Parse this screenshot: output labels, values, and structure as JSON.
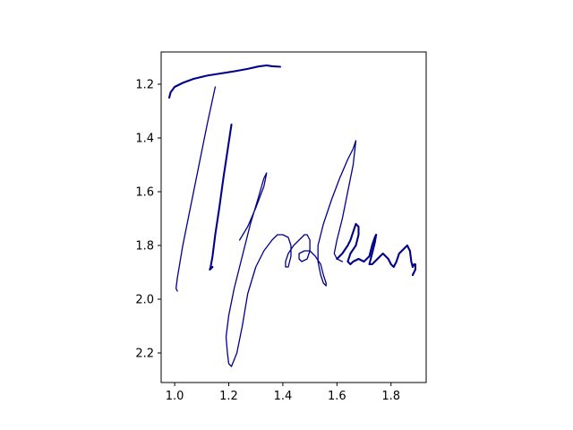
{
  "chart_data": {
    "type": "line",
    "title": "",
    "xlabel": "",
    "ylabel": "",
    "xlim": [
      0.95,
      1.93
    ],
    "ylim": [
      2.31,
      1.08
    ],
    "y_inverted": true,
    "grid": false,
    "x_ticks": [
      1.0,
      1.2,
      1.4,
      1.6,
      1.8
    ],
    "x_tick_labels": [
      "1.0",
      "1.2",
      "1.4",
      "1.6",
      "1.8"
    ],
    "y_ticks": [
      1.2,
      1.4,
      1.6,
      1.8,
      2.0,
      2.2
    ],
    "y_tick_labels": [
      "1.2",
      "1.4",
      "1.6",
      "1.8",
      "2.0",
      "2.2"
    ],
    "line_color": "#00008b",
    "series": [
      {
        "width": "thick",
        "x": [
          0.98,
          0.985,
          1.0,
          1.03,
          1.07,
          1.12,
          1.17,
          1.22,
          1.27,
          1.31,
          1.34,
          1.36,
          1.39
        ],
        "y": [
          1.25,
          1.23,
          1.21,
          1.195,
          1.18,
          1.168,
          1.16,
          1.152,
          1.143,
          1.134,
          1.13,
          1.133,
          1.135
        ]
      },
      {
        "width": "thin",
        "x": [
          1.15,
          1.12,
          1.09,
          1.06,
          1.03,
          1.01,
          1.005,
          1.01
        ],
        "y": [
          1.21,
          1.35,
          1.5,
          1.65,
          1.8,
          1.92,
          1.96,
          1.97
        ]
      },
      {
        "width": "thick",
        "x": [
          1.21,
          1.195,
          1.18,
          1.165,
          1.15,
          1.14,
          1.133,
          1.13,
          1.135,
          1.14
        ],
        "y": [
          1.35,
          1.45,
          1.55,
          1.66,
          1.76,
          1.84,
          1.88,
          1.89,
          1.885,
          1.88
        ]
      },
      {
        "width": "thin",
        "x": [
          1.24,
          1.27,
          1.3,
          1.33,
          1.34,
          1.33,
          1.31,
          1.28,
          1.25,
          1.22,
          1.2,
          1.19,
          1.195,
          1.2,
          1.21,
          1.23,
          1.25,
          1.27,
          1.3,
          1.33,
          1.36,
          1.38,
          1.4,
          1.42,
          1.43,
          1.43,
          1.42,
          1.41,
          1.41,
          1.42,
          1.44,
          1.46,
          1.48,
          1.49,
          1.5,
          1.5,
          1.49,
          1.47,
          1.46,
          1.46,
          1.48,
          1.5,
          1.52,
          1.54,
          1.55,
          1.56,
          1.56,
          1.55,
          1.54,
          1.53,
          1.53,
          1.55,
          1.58,
          1.61,
          1.64,
          1.66,
          1.67,
          1.66,
          1.64,
          1.62,
          1.6,
          1.59,
          1.6,
          1.62
        ],
        "y": [
          1.78,
          1.73,
          1.66,
          1.58,
          1.53,
          1.55,
          1.62,
          1.72,
          1.84,
          1.96,
          2.06,
          2.14,
          2.2,
          2.24,
          2.25,
          2.2,
          2.1,
          1.98,
          1.88,
          1.82,
          1.78,
          1.76,
          1.76,
          1.77,
          1.8,
          1.84,
          1.88,
          1.88,
          1.86,
          1.83,
          1.8,
          1.78,
          1.76,
          1.76,
          1.78,
          1.82,
          1.85,
          1.86,
          1.85,
          1.83,
          1.82,
          1.82,
          1.84,
          1.87,
          1.91,
          1.94,
          1.95,
          1.94,
          1.91,
          1.86,
          1.8,
          1.72,
          1.63,
          1.55,
          1.48,
          1.44,
          1.41,
          1.5,
          1.6,
          1.7,
          1.78,
          1.83,
          1.85,
          1.86
        ]
      },
      {
        "width": "thick",
        "x": [
          1.6,
          1.62,
          1.64,
          1.65,
          1.66,
          1.67,
          1.68,
          1.68,
          1.67,
          1.65,
          1.64,
          1.65,
          1.66,
          1.68,
          1.7,
          1.72,
          1.73,
          1.74,
          1.745,
          1.74,
          1.73,
          1.72,
          1.73,
          1.75,
          1.77,
          1.79,
          1.8,
          1.81,
          1.82,
          1.83,
          1.85,
          1.86,
          1.87,
          1.875,
          1.88,
          1.885,
          1.89,
          1.89,
          1.885,
          1.88
        ],
        "y": [
          1.85,
          1.83,
          1.8,
          1.78,
          1.75,
          1.72,
          1.73,
          1.76,
          1.8,
          1.83,
          1.86,
          1.87,
          1.86,
          1.85,
          1.86,
          1.84,
          1.8,
          1.77,
          1.76,
          1.79,
          1.83,
          1.87,
          1.87,
          1.85,
          1.83,
          1.85,
          1.87,
          1.88,
          1.86,
          1.83,
          1.81,
          1.8,
          1.82,
          1.86,
          1.88,
          1.87,
          1.87,
          1.89,
          1.9,
          1.91
        ]
      }
    ]
  }
}
